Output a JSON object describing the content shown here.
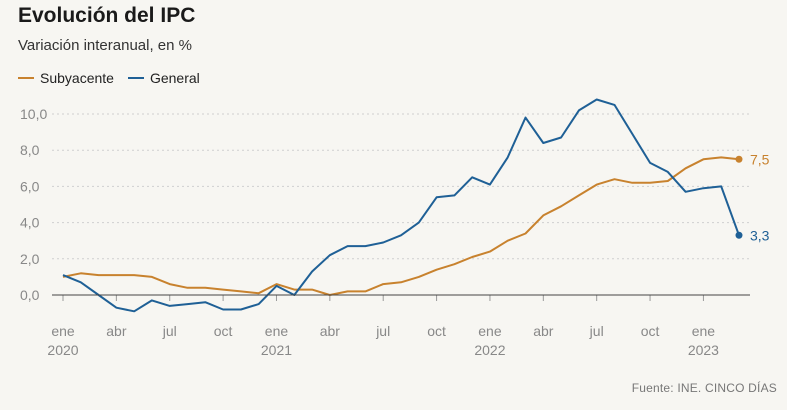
{
  "colors": {
    "subyacente": "#c8822e",
    "general": "#1f6096",
    "grid": "#cfcfcf",
    "zero": "#444444",
    "background": "#f7f6f2"
  },
  "header": {
    "title": "Evolución del IPC",
    "subtitle": "Variación interanual, en %"
  },
  "legend": {
    "subyacente": "Subyacente",
    "general": "General"
  },
  "footer": {
    "source": "Fuente: INE. CINCO DÍAS"
  },
  "chart_data": {
    "type": "line",
    "title": "Evolución del IPC",
    "ylabel": "Variación interanual, en %",
    "xlabel": "",
    "ylim": [
      0,
      10
    ],
    "yticks": [
      0,
      2,
      4,
      6,
      8,
      10
    ],
    "ytick_labels": [
      "0,0",
      "2,0",
      "4,0",
      "6,0",
      "8,0",
      "10,0"
    ],
    "x_months": [
      "ene 2020",
      "feb 2020",
      "mar 2020",
      "abr 2020",
      "may 2020",
      "jun 2020",
      "jul 2020",
      "ago 2020",
      "sep 2020",
      "oct 2020",
      "nov 2020",
      "dic 2020",
      "ene 2021",
      "feb 2021",
      "mar 2021",
      "abr 2021",
      "may 2021",
      "jun 2021",
      "jul 2021",
      "ago 2021",
      "sep 2021",
      "oct 2021",
      "nov 2021",
      "dic 2021",
      "ene 2022",
      "feb 2022",
      "mar 2022",
      "abr 2022",
      "may 2022",
      "jun 2022",
      "jul 2022",
      "ago 2022",
      "sep 2022",
      "oct 2022",
      "nov 2022",
      "dic 2022",
      "ene 2023",
      "feb 2023",
      "mar 2023"
    ],
    "xticks": [
      {
        "index": 0,
        "label": "ene",
        "year": "2020"
      },
      {
        "index": 3,
        "label": "abr",
        "year": ""
      },
      {
        "index": 6,
        "label": "jul",
        "year": ""
      },
      {
        "index": 9,
        "label": "oct",
        "year": ""
      },
      {
        "index": 12,
        "label": "ene",
        "year": "2021"
      },
      {
        "index": 15,
        "label": "abr",
        "year": ""
      },
      {
        "index": 18,
        "label": "jul",
        "year": ""
      },
      {
        "index": 21,
        "label": "oct",
        "year": ""
      },
      {
        "index": 24,
        "label": "ene",
        "year": "2022"
      },
      {
        "index": 27,
        "label": "abr",
        "year": ""
      },
      {
        "index": 30,
        "label": "jul",
        "year": ""
      },
      {
        "index": 33,
        "label": "oct",
        "year": ""
      },
      {
        "index": 36,
        "label": "ene",
        "year": "2023"
      }
    ],
    "series": [
      {
        "name": "Subyacente",
        "key": "subyacente",
        "end_label": "7,5",
        "values": [
          1.0,
          1.2,
          1.1,
          1.1,
          1.1,
          1.0,
          0.6,
          0.4,
          0.4,
          0.3,
          0.2,
          0.1,
          0.6,
          0.3,
          0.3,
          0.0,
          0.2,
          0.2,
          0.6,
          0.7,
          1.0,
          1.4,
          1.7,
          2.1,
          2.4,
          3.0,
          3.4,
          4.4,
          4.9,
          5.5,
          6.1,
          6.4,
          6.2,
          6.2,
          6.3,
          7.0,
          7.5,
          7.6,
          7.5
        ]
      },
      {
        "name": "General",
        "key": "general",
        "end_label": "3,3",
        "values": [
          1.1,
          0.7,
          0.0,
          -0.7,
          -0.9,
          -0.3,
          -0.6,
          -0.5,
          -0.4,
          -0.8,
          -0.8,
          -0.5,
          0.5,
          0.0,
          1.3,
          2.2,
          2.7,
          2.7,
          2.9,
          3.3,
          4.0,
          5.4,
          5.5,
          6.5,
          6.1,
          7.6,
          9.8,
          8.4,
          8.7,
          10.2,
          10.8,
          10.5,
          8.9,
          7.3,
          6.8,
          5.7,
          5.9,
          6.0,
          3.3
        ]
      }
    ]
  }
}
